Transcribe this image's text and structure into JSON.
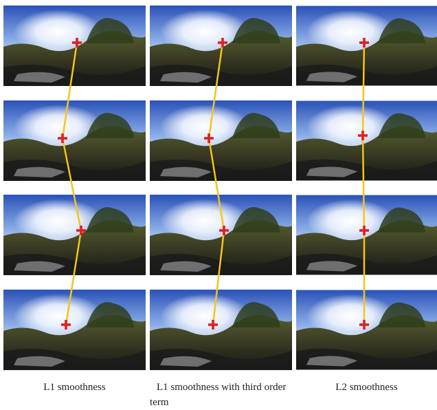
{
  "figure": {
    "captions": [
      "L1 smoothness",
      "L1 smoothness with third order term",
      "L2 smoothness"
    ]
  }
}
